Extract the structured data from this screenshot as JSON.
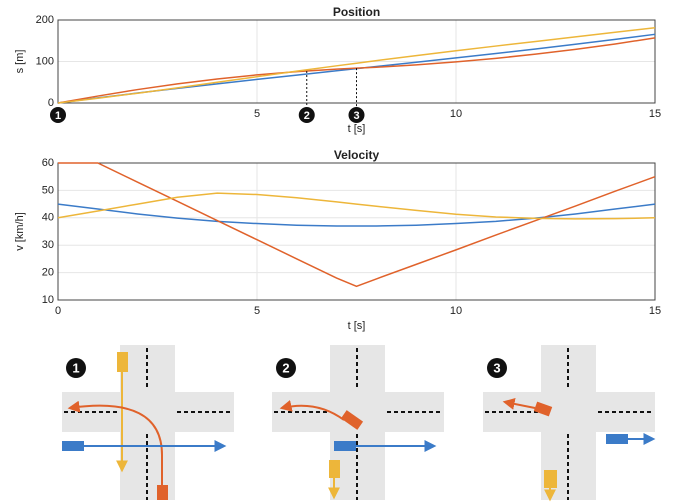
{
  "chart_data": [
    {
      "type": "line",
      "title": "Position",
      "x_label": "t [s]",
      "y_label": "s [m]",
      "x": [
        0,
        1,
        2,
        3,
        4,
        5,
        6,
        7,
        7.5,
        8,
        9,
        10,
        11,
        12,
        13,
        14,
        15
      ],
      "series": [
        {
          "color": "#3b7bc8",
          "values": [
            0,
            12.3,
            24,
            35.3,
            46.2,
            56.8,
            67.3,
            77.6,
            82.7,
            87.9,
            98.2,
            108.7,
            119.3,
            130.2,
            141.5,
            153.3,
            165.5
          ]
        },
        {
          "color": "#e0622b",
          "values": [
            0,
            16.7,
            32.4,
            46.1,
            57.9,
            67.8,
            75.7,
            81.7,
            84,
            86.2,
            91.8,
            99,
            107.6,
            117.7,
            129.3,
            142.3,
            156.8
          ]
        },
        {
          "color": "#edb63a",
          "values": [
            0,
            11.5,
            23.6,
            36.5,
            49.9,
            63.4,
            76.7,
            89.6,
            95.9,
            102.1,
            114.2,
            125.9,
            137.2,
            148.3,
            159.4,
            170.4,
            181.4
          ]
        }
      ],
      "markers": [
        {
          "label": "1",
          "x": 0
        },
        {
          "label": "2",
          "x": 6.25
        },
        {
          "label": "3",
          "x": 7.5
        }
      ],
      "xlim": [
        0,
        15
      ],
      "xticks": [
        0,
        5,
        10,
        15
      ],
      "ylim": [
        0,
        200
      ],
      "yticks": [
        0,
        100,
        200
      ],
      "grid": true
    },
    {
      "type": "line",
      "title": "Velocity",
      "x_label": "t [s]",
      "y_label": "v [km/h]",
      "x": [
        0,
        1,
        2,
        3,
        4,
        5,
        6,
        7,
        7.5,
        8,
        9,
        10,
        11,
        12,
        13,
        14,
        15
      ],
      "series": [
        {
          "color": "#3b7bc8",
          "values": [
            45,
            43.2,
            41.4,
            39.9,
            38.7,
            37.9,
            37.3,
            37,
            37,
            37,
            37.3,
            37.9,
            38.7,
            39.9,
            41.4,
            43.2,
            45
          ]
        },
        {
          "color": "#e0622b",
          "values": [
            60,
            60,
            53,
            46,
            39,
            32,
            25,
            18,
            15,
            17.7,
            23,
            28.3,
            33.7,
            39,
            44.3,
            49.7,
            55
          ]
        },
        {
          "color": "#edb63a",
          "values": [
            40,
            42.5,
            45,
            47.5,
            49,
            48.5,
            47.3,
            45.8,
            45,
            44.2,
            42.7,
            41.3,
            40.3,
            39.8,
            39.6,
            39.7,
            40
          ]
        }
      ],
      "xlim": [
        0,
        15
      ],
      "xticks": [
        0,
        5,
        10,
        15
      ],
      "ylim": [
        10,
        60
      ],
      "yticks": [
        10,
        20,
        30,
        40,
        50,
        60
      ],
      "grid": true
    }
  ]
}
